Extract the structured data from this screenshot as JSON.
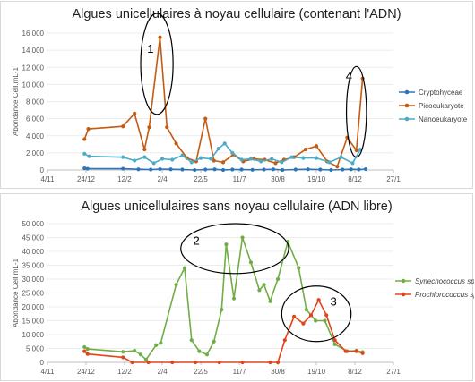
{
  "chart_data": [
    {
      "type": "line",
      "title": "Algues unicellulaires à noyau cellulaire (contenant l'ADN)",
      "ylabel": "Abondance Cell.mL-1",
      "xlabel": "",
      "x_tick_labels": [
        "4/11",
        "24/12",
        "12/2",
        "2/4",
        "22/5",
        "11/7",
        "30/8",
        "19/10",
        "8/12",
        "27/1"
      ],
      "x_ticks": [
        "2022-11-04",
        "2022-12-24",
        "2023-02-12",
        "2023-04-02",
        "2023-05-22",
        "2023-07-11",
        "2023-08-30",
        "2023-10-19",
        "2023-12-08",
        "2024-01-27"
      ],
      "ylim": [
        0,
        16000
      ],
      "y_tick_labels": [
        "0",
        "2 000",
        "4 000",
        "6 000",
        "8 000",
        "10 000",
        "12 000",
        "14 000",
        "16 000"
      ],
      "y_ticks": [
        0,
        2000,
        4000,
        6000,
        8000,
        10000,
        12000,
        14000,
        16000
      ],
      "legend_position": "right",
      "series": [
        {
          "name": "Cryptohyceae",
          "color": "#2e75b6",
          "points": [
            [
              "2022-12-22",
              200
            ],
            [
              "2022-12-26",
              150
            ],
            [
              "2023-02-10",
              150
            ],
            [
              "2023-03-02",
              80
            ],
            [
              "2023-03-18",
              50
            ],
            [
              "2023-03-30",
              100
            ],
            [
              "2023-04-13",
              80
            ],
            [
              "2023-04-28",
              50
            ],
            [
              "2023-05-14",
              0
            ],
            [
              "2023-05-28",
              50
            ],
            [
              "2023-06-09",
              80
            ],
            [
              "2023-06-20",
              0
            ],
            [
              "2023-07-02",
              50
            ],
            [
              "2023-07-14",
              50
            ],
            [
              "2023-07-28",
              20
            ],
            [
              "2023-08-12",
              50
            ],
            [
              "2023-08-24",
              80
            ],
            [
              "2023-09-05",
              0
            ],
            [
              "2023-09-22",
              50
            ],
            [
              "2023-10-08",
              80
            ],
            [
              "2023-10-24",
              50
            ],
            [
              "2023-11-07",
              0
            ],
            [
              "2023-11-22",
              50
            ],
            [
              "2023-12-03",
              80
            ],
            [
              "2023-12-13",
              50
            ],
            [
              "2023-12-22",
              100
            ]
          ]
        },
        {
          "name": "Picoeukaryote",
          "color": "#c55a11",
          "points": [
            [
              "2022-12-22",
              3600
            ],
            [
              "2022-12-27",
              4800
            ],
            [
              "2023-02-10",
              5100
            ],
            [
              "2023-02-25",
              6600
            ],
            [
              "2023-03-10",
              2400
            ],
            [
              "2023-03-16",
              5000
            ],
            [
              "2023-03-30",
              15500
            ],
            [
              "2023-04-08",
              5000
            ],
            [
              "2023-04-20",
              3100
            ],
            [
              "2023-05-04",
              1400
            ],
            [
              "2023-05-16",
              1000
            ],
            [
              "2023-05-28",
              6000
            ],
            [
              "2023-06-08",
              1100
            ],
            [
              "2023-06-20",
              900
            ],
            [
              "2023-07-03",
              1800
            ],
            [
              "2023-07-16",
              1000
            ],
            [
              "2023-07-30",
              1300
            ],
            [
              "2023-08-13",
              1200
            ],
            [
              "2023-08-27",
              800
            ],
            [
              "2023-09-07",
              1200
            ],
            [
              "2023-09-20",
              1500
            ],
            [
              "2023-10-05",
              2400
            ],
            [
              "2023-10-19",
              2800
            ],
            [
              "2023-11-02",
              1000
            ],
            [
              "2023-11-15",
              400
            ],
            [
              "2023-11-28",
              3800
            ],
            [
              "2023-12-10",
              2300
            ],
            [
              "2023-12-18",
              10700
            ]
          ]
        },
        {
          "name": "Nanoeukaryote",
          "color": "#4bacc6",
          "points": [
            [
              "2022-12-22",
              1900
            ],
            [
              "2022-12-28",
              1600
            ],
            [
              "2023-02-10",
              1500
            ],
            [
              "2023-02-25",
              1100
            ],
            [
              "2023-03-10",
              1500
            ],
            [
              "2023-03-22",
              800
            ],
            [
              "2023-04-02",
              1300
            ],
            [
              "2023-04-15",
              1200
            ],
            [
              "2023-04-28",
              1700
            ],
            [
              "2023-05-10",
              900
            ],
            [
              "2023-05-22",
              1400
            ],
            [
              "2023-06-04",
              1300
            ],
            [
              "2023-06-14",
              2500
            ],
            [
              "2023-06-22",
              3100
            ],
            [
              "2023-07-02",
              2000
            ],
            [
              "2023-07-14",
              1200
            ],
            [
              "2023-07-26",
              1300
            ],
            [
              "2023-08-08",
              1000
            ],
            [
              "2023-08-22",
              1300
            ],
            [
              "2023-09-04",
              900
            ],
            [
              "2023-09-17",
              1500
            ],
            [
              "2023-10-02",
              1400
            ],
            [
              "2023-10-19",
              1400
            ],
            [
              "2023-11-05",
              900
            ],
            [
              "2023-11-20",
              1500
            ],
            [
              "2023-12-05",
              800
            ],
            [
              "2023-12-15",
              2400
            ]
          ]
        }
      ],
      "annotations": [
        {
          "label": "1",
          "shape": "ellipse",
          "center": [
            "2023-03-26",
            12400
          ],
          "radius_days": 21,
          "radius_value": 5900
        },
        {
          "label": "4",
          "shape": "ellipse",
          "center": [
            "2023-12-10",
            6800
          ],
          "radius_days": 13,
          "radius_value": 5300
        }
      ]
    },
    {
      "type": "line",
      "title": "Algues unicellulaires sans noyau cellulaire (ADN libre)",
      "ylabel": "Abondance Cell.mL-1",
      "xlabel": "",
      "x_tick_labels": [
        "4/11",
        "24/12",
        "12/2",
        "2/4",
        "22/5",
        "11/7",
        "30/8",
        "19/10",
        "8/12",
        "27/1"
      ],
      "x_ticks": [
        "2022-11-04",
        "2022-12-24",
        "2023-02-12",
        "2023-04-02",
        "2023-05-22",
        "2023-07-11",
        "2023-08-30",
        "2023-10-19",
        "2023-12-08",
        "2024-01-27"
      ],
      "ylim": [
        0,
        50000
      ],
      "y_tick_labels": [
        "0",
        "5 000",
        "10 000",
        "15 000",
        "20 000",
        "25 000",
        "30 000",
        "35 000",
        "40 000",
        "45 000",
        "50 000"
      ],
      "y_ticks": [
        0,
        5000,
        10000,
        15000,
        20000,
        25000,
        30000,
        35000,
        40000,
        45000,
        50000
      ],
      "legend_position": "right",
      "series": [
        {
          "name": "Synechococcus sp.",
          "color": "#70ad47",
          "points": [
            [
              "2022-12-22",
              5500
            ],
            [
              "2022-12-26",
              4800
            ],
            [
              "2023-02-10",
              3800
            ],
            [
              "2023-02-25",
              4200
            ],
            [
              "2023-03-05",
              2800
            ],
            [
              "2023-03-12",
              1000
            ],
            [
              "2023-03-25",
              6200
            ],
            [
              "2023-03-31",
              7000
            ],
            [
              "2023-04-20",
              28000
            ],
            [
              "2023-05-01",
              34000
            ],
            [
              "2023-05-10",
              8000
            ],
            [
              "2023-05-20",
              4000
            ],
            [
              "2023-05-30",
              2800
            ],
            [
              "2023-06-08",
              7500
            ],
            [
              "2023-06-18",
              19000
            ],
            [
              "2023-06-24",
              42500
            ],
            [
              "2023-07-04",
              23000
            ],
            [
              "2023-07-15",
              45000
            ],
            [
              "2023-07-26",
              36000
            ],
            [
              "2023-08-06",
              26000
            ],
            [
              "2023-08-12",
              28000
            ],
            [
              "2023-08-20",
              22000
            ],
            [
              "2023-08-30",
              30000
            ],
            [
              "2023-09-12",
              43500
            ],
            [
              "2023-09-26",
              34000
            ],
            [
              "2023-10-06",
              19000
            ],
            [
              "2023-10-18",
              15000
            ],
            [
              "2023-10-30",
              15000
            ],
            [
              "2023-11-12",
              6500
            ],
            [
              "2023-11-28",
              4000
            ],
            [
              "2023-12-10",
              4200
            ],
            [
              "2023-12-18",
              3700
            ]
          ]
        },
        {
          "name": "Prochlorococcus sp.",
          "color": "#e0441c",
          "points": [
            [
              "2022-12-22",
              4000
            ],
            [
              "2022-12-26",
              3000
            ],
            [
              "2023-02-10",
              1800
            ],
            [
              "2023-02-22",
              0
            ],
            [
              "2023-03-15",
              0
            ],
            [
              "2023-04-15",
              0
            ],
            [
              "2023-05-15",
              0
            ],
            [
              "2023-06-15",
              0
            ],
            [
              "2023-07-15",
              0
            ],
            [
              "2023-08-20",
              0
            ],
            [
              "2023-08-30",
              0
            ],
            [
              "2023-09-08",
              8000
            ],
            [
              "2023-09-20",
              16500
            ],
            [
              "2023-10-02",
              14000
            ],
            [
              "2023-10-12",
              17000
            ],
            [
              "2023-10-22",
              22500
            ],
            [
              "2023-11-01",
              17000
            ],
            [
              "2023-11-12",
              8000
            ],
            [
              "2023-11-26",
              4000
            ],
            [
              "2023-12-10",
              4000
            ],
            [
              "2023-12-18",
              3300
            ]
          ]
        }
      ],
      "annotations": [
        {
          "label": "2",
          "shape": "ellipse",
          "center": [
            "2023-07-05",
            41000
          ],
          "radius_days": 70,
          "radius_value": 9000
        },
        {
          "label": "3",
          "shape": "ellipse",
          "center": [
            "2023-10-19",
            17500
          ],
          "radius_days": 45,
          "radius_value": 10000
        }
      ]
    }
  ]
}
